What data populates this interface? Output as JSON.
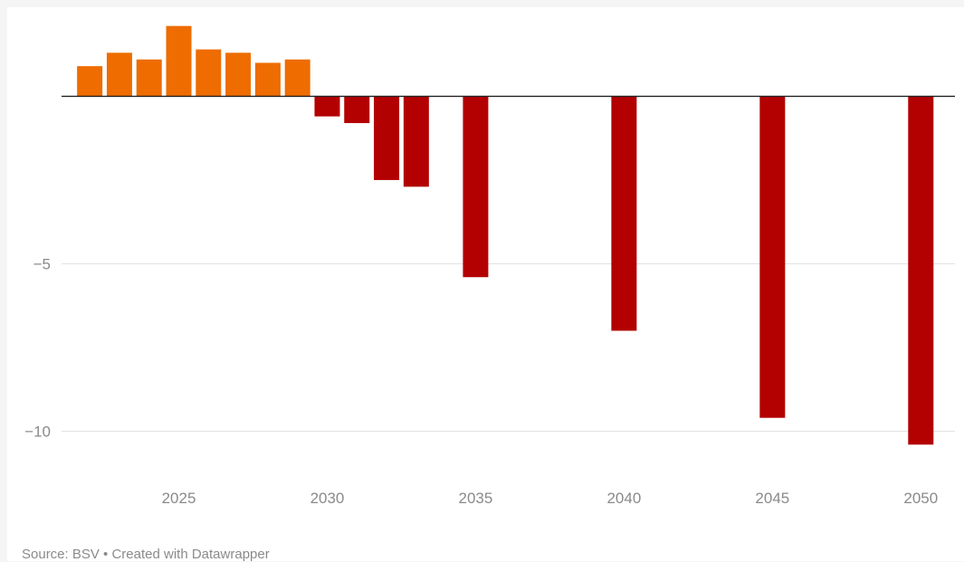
{
  "chart_data": {
    "type": "bar",
    "title": "",
    "xlabel": "",
    "ylabel": "",
    "ylim": [
      -10.5,
      2.2
    ],
    "xlim": [
      2021.05,
      2051.15
    ],
    "grid": true,
    "y_ticks": [
      {
        "value": -5,
        "label": "−5"
      },
      {
        "value": -10,
        "label": "−10"
      }
    ],
    "x_ticks": [
      {
        "value": 2025,
        "label": "2025"
      },
      {
        "value": 2030,
        "label": "2030"
      },
      {
        "value": 2035,
        "label": "2035"
      },
      {
        "value": 2040,
        "label": "2040"
      },
      {
        "value": 2045,
        "label": "2045"
      },
      {
        "value": 2050,
        "label": "2050"
      }
    ],
    "x": [
      2022,
      2023,
      2024,
      2025,
      2026,
      2027,
      2028,
      2029,
      2030,
      2031,
      2032,
      2033,
      2035,
      2040,
      2045,
      2050
    ],
    "values": [
      0.9,
      1.3,
      1.1,
      2.1,
      1.4,
      1.3,
      1.0,
      1.1,
      -0.6,
      -0.8,
      -2.5,
      -2.7,
      -5.4,
      -7.0,
      -9.6,
      -10.4
    ],
    "colors": {
      "positive": "#ee6c00",
      "negative": "#b30000",
      "grid": "#e2e2e2",
      "baseline": "#222222"
    }
  },
  "footer": "Source: BSV • Created with Datawrapper"
}
